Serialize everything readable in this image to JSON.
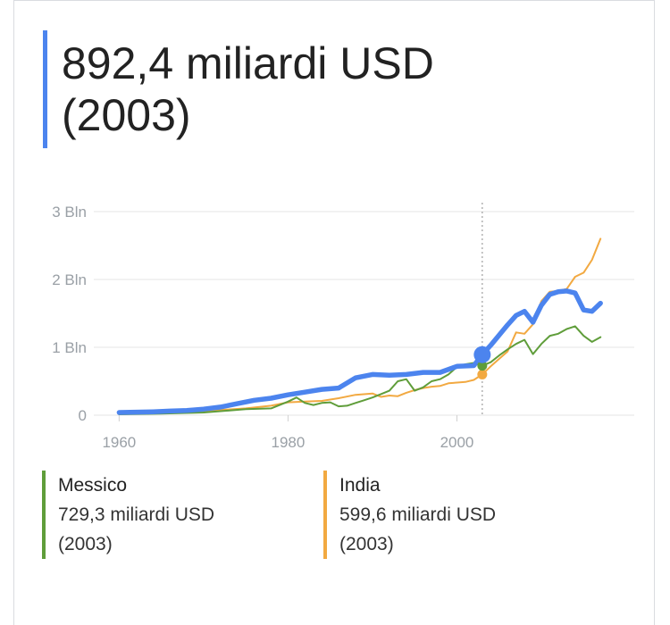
{
  "headline": {
    "value": "892,4 miliardi USD",
    "year": "(2003)",
    "color": "#4c84ee"
  },
  "chart_data": {
    "type": "line",
    "title": "",
    "xlabel": "",
    "ylabel": "",
    "xlim": [
      1957,
      2021
    ],
    "ylim": [
      0,
      3
    ],
    "x_ticks": [
      {
        "value": 1960,
        "label": "1960"
      },
      {
        "value": 1980,
        "label": "1980"
      },
      {
        "value": 2000,
        "label": "2000"
      }
    ],
    "y_ticks": [
      {
        "value": 0,
        "label": "0"
      },
      {
        "value": 1,
        "label": "1 Bln"
      },
      {
        "value": 2,
        "label": "2 Bln"
      },
      {
        "value": 3,
        "label": "3 Bln"
      }
    ],
    "grid": true,
    "highlight_x": 2003,
    "series": [
      {
        "key": "main",
        "color": "#4c84ee",
        "points": [
          [
            1960,
            0.04
          ],
          [
            1962,
            0.045
          ],
          [
            1964,
            0.05
          ],
          [
            1966,
            0.06
          ],
          [
            1968,
            0.07
          ],
          [
            1970,
            0.09
          ],
          [
            1972,
            0.12
          ],
          [
            1974,
            0.17
          ],
          [
            1976,
            0.22
          ],
          [
            1978,
            0.25
          ],
          [
            1980,
            0.3
          ],
          [
            1982,
            0.34
          ],
          [
            1984,
            0.38
          ],
          [
            1986,
            0.4
          ],
          [
            1988,
            0.55
          ],
          [
            1990,
            0.6
          ],
          [
            1992,
            0.59
          ],
          [
            1994,
            0.6
          ],
          [
            1996,
            0.63
          ],
          [
            1998,
            0.63
          ],
          [
            2000,
            0.72
          ],
          [
            2002,
            0.73
          ],
          [
            2003,
            0.892
          ],
          [
            2004,
            1.03
          ],
          [
            2005,
            1.18
          ],
          [
            2006,
            1.33
          ],
          [
            2007,
            1.47
          ],
          [
            2008,
            1.53
          ],
          [
            2009,
            1.37
          ],
          [
            2010,
            1.62
          ],
          [
            2011,
            1.78
          ],
          [
            2012,
            1.82
          ],
          [
            2013,
            1.83
          ],
          [
            2014,
            1.8
          ],
          [
            2015,
            1.55
          ],
          [
            2016,
            1.53
          ],
          [
            2017,
            1.65
          ]
        ]
      },
      {
        "key": "mexico",
        "name": "Messico",
        "color": "#5f9d3a",
        "points": [
          [
            1960,
            0.013
          ],
          [
            1965,
            0.022
          ],
          [
            1970,
            0.039
          ],
          [
            1975,
            0.088
          ],
          [
            1978,
            0.1
          ],
          [
            1980,
            0.2
          ],
          [
            1981,
            0.26
          ],
          [
            1982,
            0.18
          ],
          [
            1983,
            0.15
          ],
          [
            1984,
            0.18
          ],
          [
            1985,
            0.19
          ],
          [
            1986,
            0.13
          ],
          [
            1987,
            0.14
          ],
          [
            1988,
            0.18
          ],
          [
            1989,
            0.22
          ],
          [
            1990,
            0.26
          ],
          [
            1991,
            0.31
          ],
          [
            1992,
            0.36
          ],
          [
            1993,
            0.5
          ],
          [
            1994,
            0.53
          ],
          [
            1995,
            0.36
          ],
          [
            1996,
            0.41
          ],
          [
            1997,
            0.5
          ],
          [
            1998,
            0.53
          ],
          [
            1999,
            0.6
          ],
          [
            2000,
            0.71
          ],
          [
            2001,
            0.75
          ],
          [
            2002,
            0.77
          ],
          [
            2003,
            0.729
          ],
          [
            2004,
            0.78
          ],
          [
            2005,
            0.88
          ],
          [
            2006,
            0.97
          ],
          [
            2007,
            1.05
          ],
          [
            2008,
            1.11
          ],
          [
            2009,
            0.9
          ],
          [
            2010,
            1.05
          ],
          [
            2011,
            1.17
          ],
          [
            2012,
            1.2
          ],
          [
            2013,
            1.27
          ],
          [
            2014,
            1.31
          ],
          [
            2015,
            1.17
          ],
          [
            2016,
            1.08
          ],
          [
            2017,
            1.15
          ]
        ]
      },
      {
        "key": "india",
        "name": "India",
        "color": "#f2a941",
        "points": [
          [
            1960,
            0.037
          ],
          [
            1965,
            0.059
          ],
          [
            1970,
            0.062
          ],
          [
            1975,
            0.1
          ],
          [
            1978,
            0.14
          ],
          [
            1980,
            0.19
          ],
          [
            1982,
            0.2
          ],
          [
            1984,
            0.21
          ],
          [
            1986,
            0.25
          ],
          [
            1988,
            0.3
          ],
          [
            1990,
            0.32
          ],
          [
            1991,
            0.27
          ],
          [
            1992,
            0.29
          ],
          [
            1993,
            0.28
          ],
          [
            1994,
            0.33
          ],
          [
            1995,
            0.37
          ],
          [
            1996,
            0.4
          ],
          [
            1997,
            0.42
          ],
          [
            1998,
            0.43
          ],
          [
            1999,
            0.47
          ],
          [
            2000,
            0.48
          ],
          [
            2001,
            0.49
          ],
          [
            2002,
            0.52
          ],
          [
            2003,
            0.5996
          ],
          [
            2004,
            0.72
          ],
          [
            2005,
            0.83
          ],
          [
            2006,
            0.94
          ],
          [
            2007,
            1.22
          ],
          [
            2008,
            1.2
          ],
          [
            2009,
            1.34
          ],
          [
            2010,
            1.68
          ],
          [
            2011,
            1.82
          ],
          [
            2012,
            1.83
          ],
          [
            2013,
            1.86
          ],
          [
            2014,
            2.04
          ],
          [
            2015,
            2.1
          ],
          [
            2016,
            2.29
          ],
          [
            2017,
            2.6
          ]
        ]
      }
    ]
  },
  "legend": {
    "mexico": {
      "name": "Messico",
      "value": "729,3 miliardi USD",
      "year": "(2003)",
      "color": "#5f9d3a"
    },
    "india": {
      "name": "India",
      "value": "599,6 miliardi USD",
      "year": "(2003)",
      "color": "#f2a941"
    }
  }
}
